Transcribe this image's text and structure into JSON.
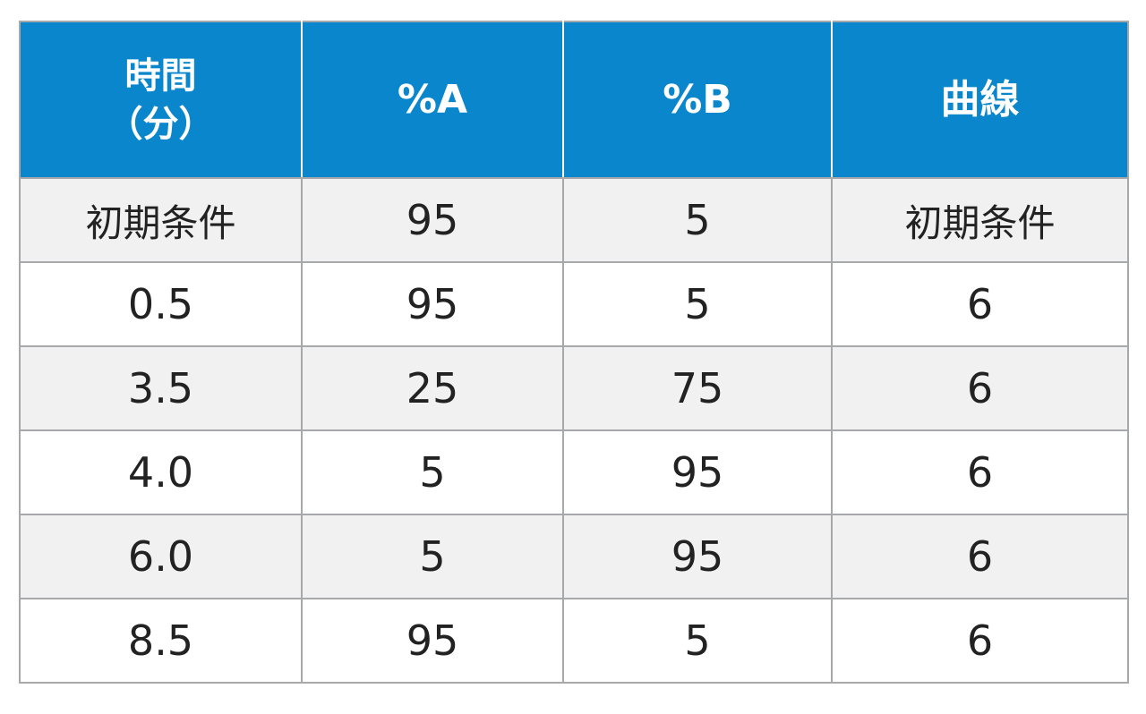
{
  "table": {
    "headers": {
      "time_line1": "時間",
      "time_line2": "（分）",
      "percent_a": "%A",
      "percent_b": "%B",
      "curve": "曲線"
    },
    "rows": [
      {
        "time": "初期条件",
        "a": "95",
        "b": "5",
        "curve": "初期条件"
      },
      {
        "time": "0.5",
        "a": "95",
        "b": "5",
        "curve": "6"
      },
      {
        "time": "3.5",
        "a": "25",
        "b": "75",
        "curve": "6"
      },
      {
        "time": "4.0",
        "a": "5",
        "b": "95",
        "curve": "6"
      },
      {
        "time": "6.0",
        "a": "5",
        "b": "95",
        "curve": "6"
      },
      {
        "time": "8.5",
        "a": "95",
        "b": "5",
        "curve": "6"
      }
    ]
  },
  "colors": {
    "header_bg": "#0a86cc",
    "header_text": "#ffffff",
    "row_alt_bg": "#f1f1f2",
    "border": "#a7a8ac"
  }
}
